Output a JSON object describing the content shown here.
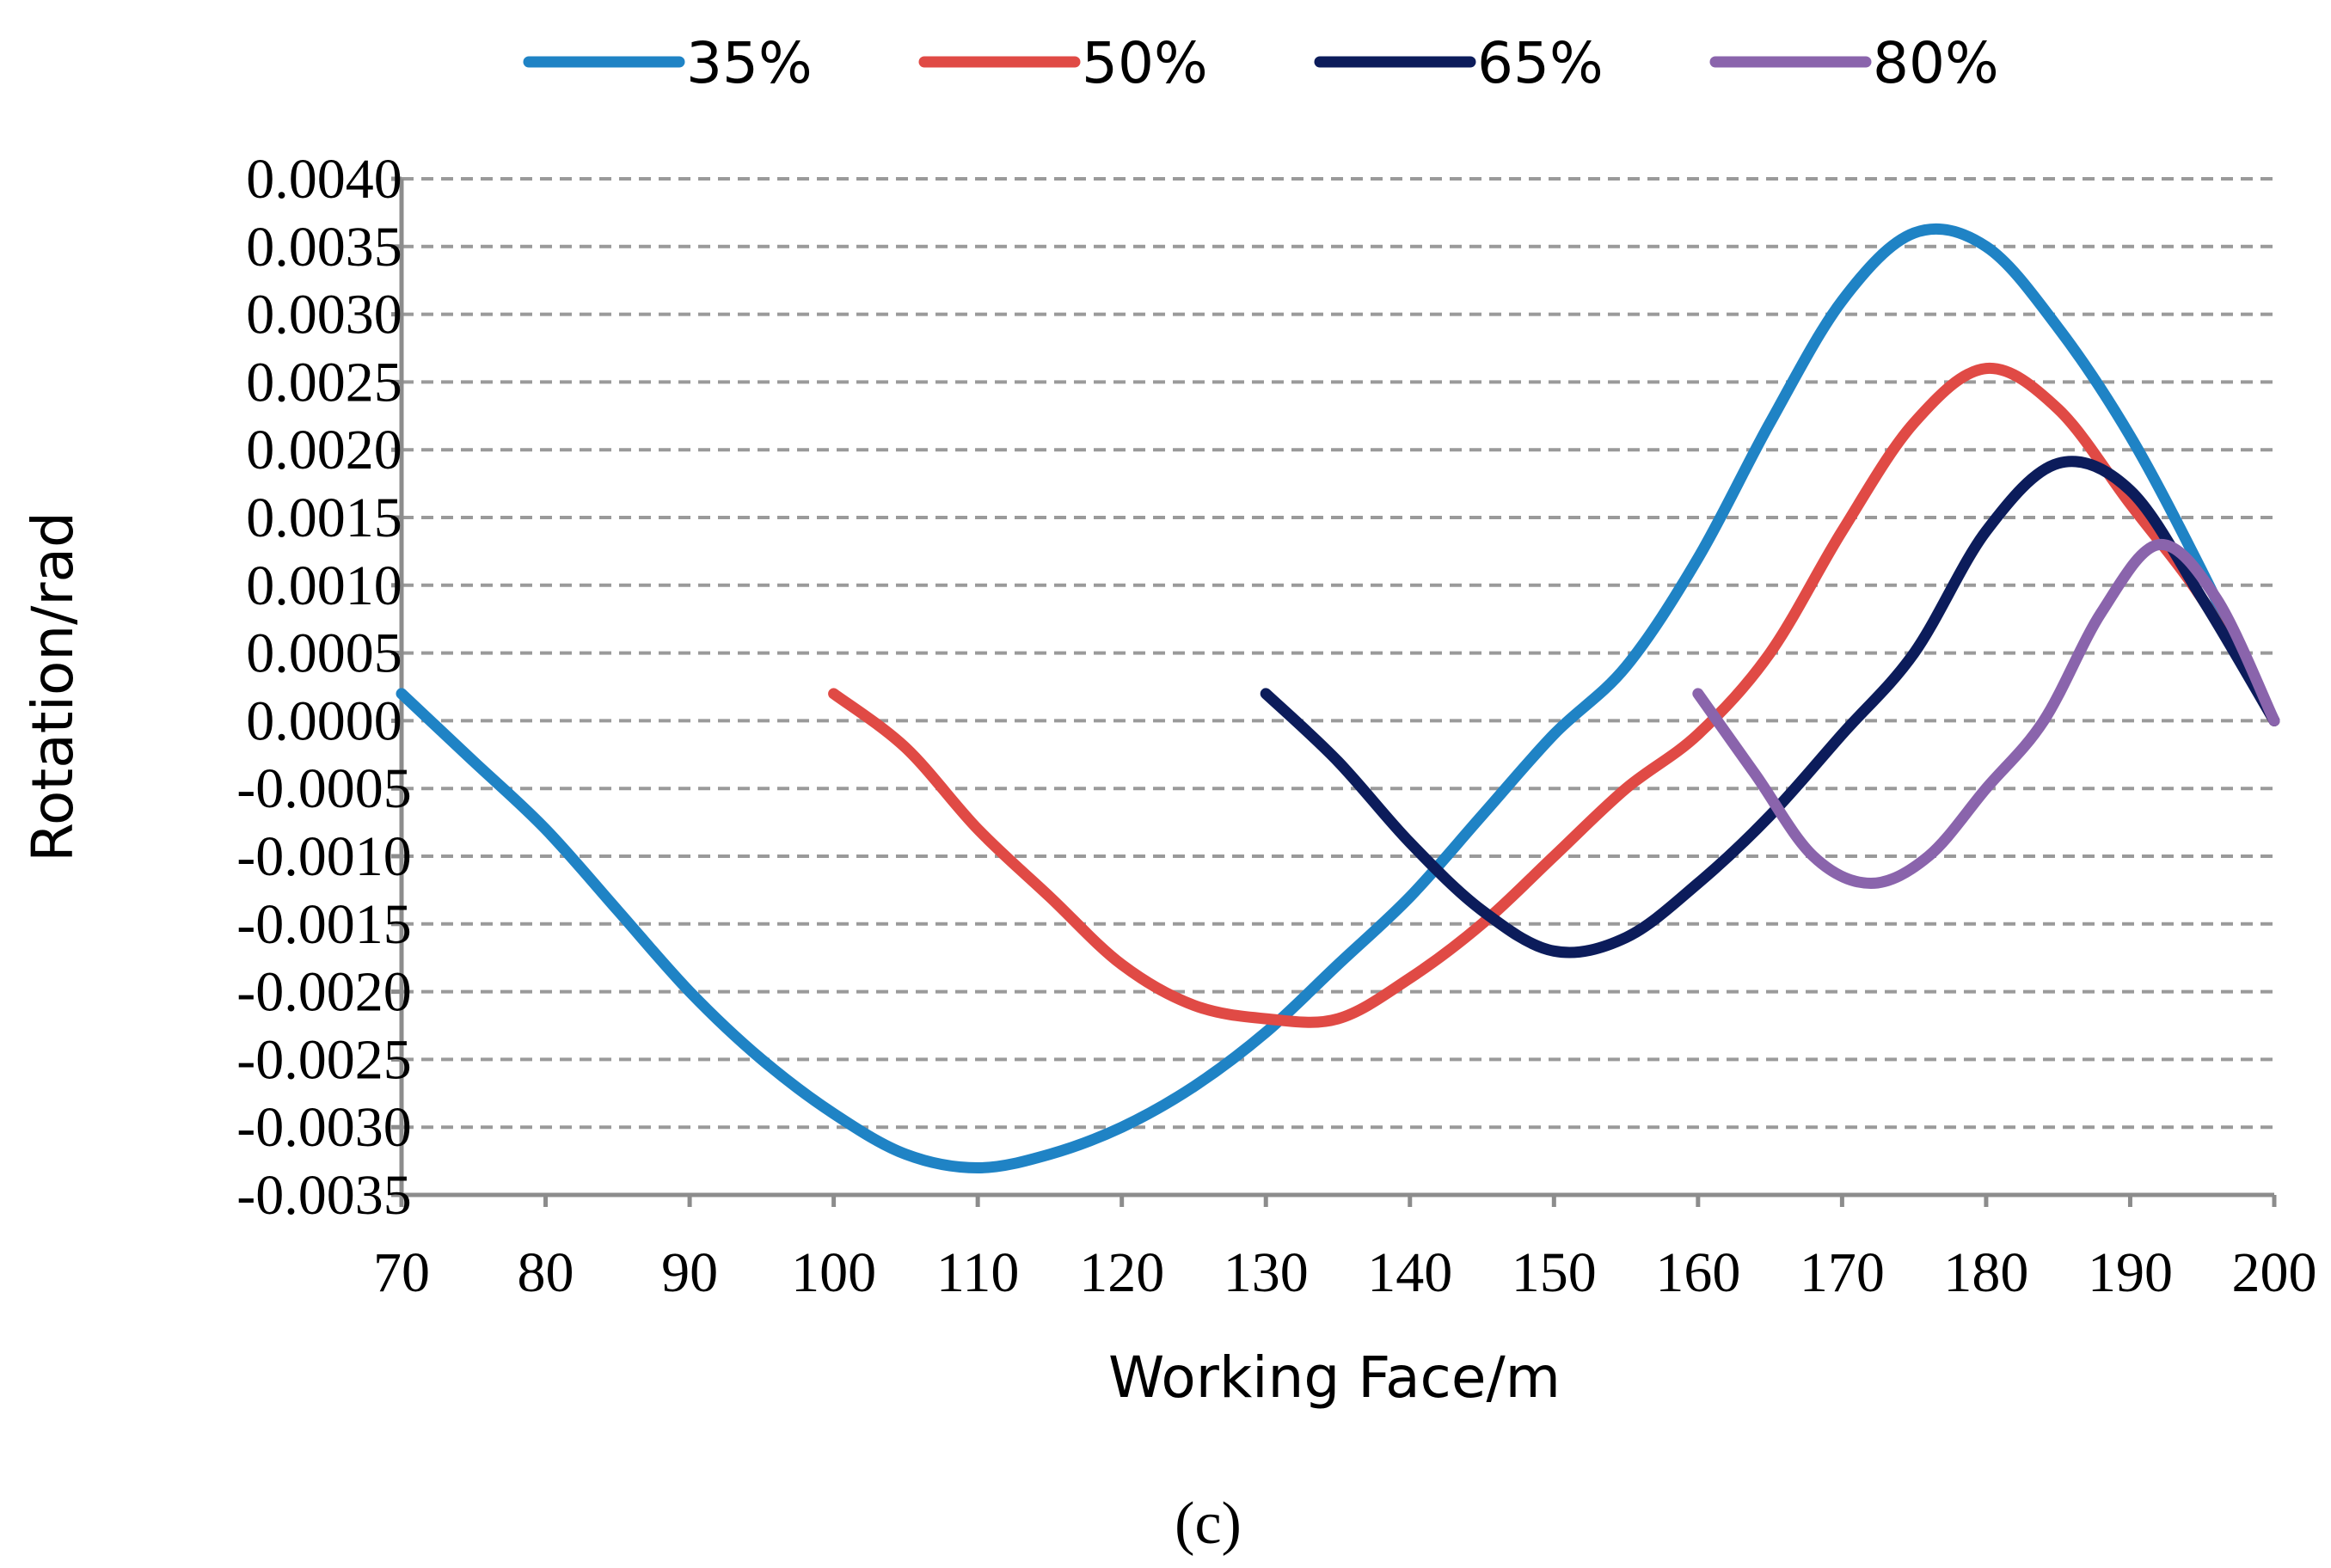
{
  "chart_data": {
    "type": "line",
    "xlabel": "Working Face/m",
    "ylabel": "Rotation/rad",
    "xlim": [
      70,
      200
    ],
    "ylim": [
      -0.0035,
      0.004
    ],
    "x_ticks": [
      "70",
      "80",
      "90",
      "100",
      "110",
      "120",
      "130",
      "140",
      "150",
      "160",
      "170",
      "180",
      "190",
      "200"
    ],
    "y_ticks": [
      "0.0040",
      "0.0035",
      "0.0030",
      "0.0025",
      "0.0020",
      "0.0015",
      "0.0010",
      "0.0005",
      "0.0000",
      "-0.0005",
      "-0.0010",
      "-0.0015",
      "-0.0020",
      "-0.0025",
      "-0.0030",
      "-0.0035"
    ],
    "grid": true,
    "grid_style": "dashed horizontal",
    "legend_position": "top",
    "series": [
      {
        "name": "35%",
        "color": "#1f83c5",
        "x": [
          70,
          75,
          80,
          85,
          90,
          95,
          100,
          105,
          110,
          115,
          120,
          125,
          130,
          135,
          140,
          145,
          150,
          155,
          160,
          165,
          170,
          175,
          180,
          185,
          190,
          195,
          200
        ],
        "y": [
          0.0002,
          -0.0003,
          -0.0008,
          -0.0014,
          -0.002,
          -0.0025,
          -0.0029,
          -0.0032,
          -0.0033,
          -0.0032,
          -0.003,
          -0.0027,
          -0.0023,
          -0.0018,
          -0.0013,
          -0.0007,
          -0.0001,
          0.0004,
          0.0012,
          0.0022,
          0.0031,
          0.0036,
          0.0035,
          0.0029,
          0.0021,
          0.0011,
          0.0
        ]
      },
      {
        "name": "50%",
        "color": "#e04a45",
        "x": [
          100,
          105,
          110,
          115,
          120,
          125,
          130,
          135,
          140,
          145,
          150,
          155,
          160,
          165,
          170,
          175,
          180,
          185,
          190,
          195,
          200
        ],
        "y": [
          0.0002,
          -0.0002,
          -0.0008,
          -0.0013,
          -0.0018,
          -0.0021,
          -0.0022,
          -0.0022,
          -0.0019,
          -0.0015,
          -0.001,
          -0.0005,
          -0.0001,
          0.0005,
          0.0014,
          0.0022,
          0.0026,
          0.0023,
          0.0016,
          0.0009,
          0.0
        ]
      },
      {
        "name": "65%",
        "color": "#0c1c5b",
        "x": [
          130,
          135,
          140,
          145,
          150,
          155,
          160,
          165,
          170,
          175,
          180,
          185,
          190,
          195,
          200
        ],
        "y": [
          0.0002,
          -0.0003,
          -0.0009,
          -0.0014,
          -0.0017,
          -0.0016,
          -0.0012,
          -0.0007,
          -0.0001,
          0.0005,
          0.0014,
          0.0019,
          0.0017,
          0.0009,
          0.0
        ]
      },
      {
        "name": "80%",
        "color": "#8a64ac",
        "x": [
          160,
          164,
          168,
          172,
          176,
          180,
          184,
          188,
          192,
          196,
          200
        ],
        "y": [
          0.0002,
          -0.0004,
          -0.001,
          -0.0012,
          -0.001,
          -0.0005,
          0.0,
          0.0008,
          0.0013,
          0.0009,
          0.0
        ]
      }
    ]
  },
  "caption": "(c)"
}
